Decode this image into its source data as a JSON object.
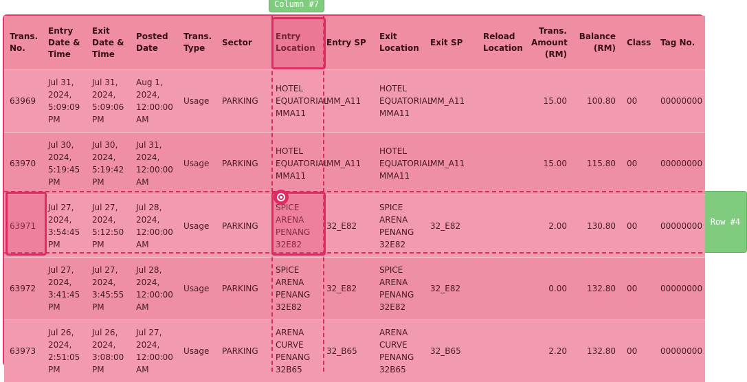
{
  "overlays": {
    "column_tag": "Column #7",
    "row_tag": "Row #4"
  },
  "table": {
    "columns": [
      "Trans. No.",
      "Entry Date & Time",
      "Exit Date & Time",
      "Posted Date",
      "Trans. Type",
      "Sector",
      "Entry Location",
      "Entry SP",
      "Exit Location",
      "Exit SP",
      "Reload Location",
      "Trans. Amount (RM)",
      "Balance (RM)",
      "Class",
      "Tag No."
    ],
    "rows": [
      [
        "63969",
        "Jul 31, 2024, 5:09:09 PM",
        "Jul 31, 2024, 5:09:06 PM",
        "Aug 1, 2024, 12:00:00 AM",
        "Usage",
        "PARKING",
        "HOTEL EQUATORIAL MMA11",
        "MM_A11",
        "HOTEL EQUATORIAL MMA11",
        "MM_A11",
        "",
        "15.00",
        "100.80",
        "00",
        "00000000"
      ],
      [
        "63970",
        "Jul 30, 2024, 5:19:45 PM",
        "Jul 30, 2024, 5:19:42 PM",
        "Jul 31, 2024, 12:00:00 AM",
        "Usage",
        "PARKING",
        "HOTEL EQUATORIAL MMA11",
        "MM_A11",
        "HOTEL EQUATORIAL MMA11",
        "MM_A11",
        "",
        "15.00",
        "115.80",
        "00",
        "00000000"
      ],
      [
        "63971",
        "Jul 27, 2024, 3:54:45 PM",
        "Jul 27, 2024, 5:12:50 PM",
        "Jul 28, 2024, 12:00:00 AM",
        "Usage",
        "PARKING",
        "SPICE ARENA PENANG 32E82",
        "32_E82",
        "SPICE ARENA PENANG 32E82",
        "32_E82",
        "",
        "2.00",
        "130.80",
        "00",
        "00000000"
      ],
      [
        "63972",
        "Jul 27, 2024, 3:41:45 PM",
        "Jul 27, 2024, 3:45:55 PM",
        "Jul 28, 2024, 12:00:00 AM",
        "Usage",
        "PARKING",
        "SPICE ARENA PENANG 32E82",
        "32_E82",
        "SPICE ARENA PENANG 32E82",
        "32_E82",
        "",
        "0.00",
        "132.80",
        "00",
        "00000000"
      ],
      [
        "63973",
        "Jul 26, 2024, 2:51:05 PM",
        "Jul 26, 2024, 3:08:00 PM",
        "Jul 27, 2024, 12:00:00 AM",
        "Usage",
        "PARKING",
        "ARENA CURVE PENANG 32B65",
        "32_B65",
        "ARENA CURVE PENANG 32B65",
        "32_B65",
        "",
        "2.20",
        "132.80",
        "00",
        "00000000"
      ]
    ]
  }
}
